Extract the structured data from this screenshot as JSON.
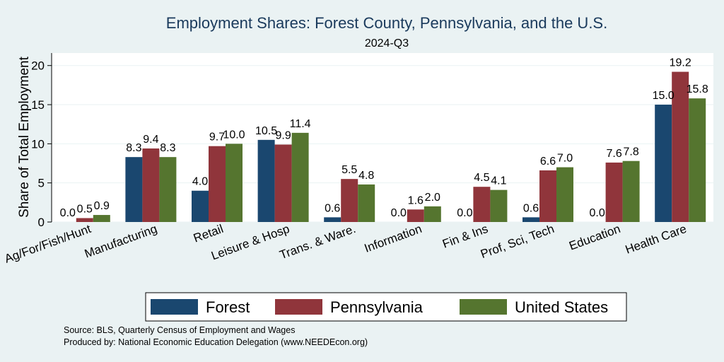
{
  "chart_data": {
    "type": "bar",
    "title": "Employment Shares: Forest County, Pennsylvania, and the U.S.",
    "subtitle": "2024-Q3",
    "xlabel": "",
    "ylabel": "Share of Total Employment",
    "ylim": [
      0,
      21.6
    ],
    "yticks": [
      0,
      5,
      10,
      15,
      20
    ],
    "grid": true,
    "legend_position": "bottom",
    "categories": [
      "Ag/For/Fish/Hunt",
      "Manufacturing",
      "Retail",
      "Leisure & Hosp",
      "Trans. & Ware.",
      "Information",
      "Fin & Ins",
      "Prof, Sci, Tech",
      "Education",
      "Health Care"
    ],
    "series": [
      {
        "name": "Forest",
        "color": "#1a476f",
        "values": [
          0.0,
          8.3,
          4.0,
          10.5,
          0.6,
          0.0,
          0.0,
          0.6,
          0.0,
          15.0
        ],
        "labels": [
          "0.0",
          "8.3",
          "4.0",
          "10.5",
          "0.6",
          "0.0",
          "0.0",
          "0.6",
          "0.0",
          "15.0"
        ]
      },
      {
        "name": "Pennsylvania",
        "color": "#90353b",
        "values": [
          0.5,
          9.4,
          9.7,
          9.9,
          5.5,
          1.6,
          4.5,
          6.6,
          7.6,
          19.2
        ],
        "labels": [
          "0.5",
          "9.4",
          "9.7",
          "9.9",
          "5.5",
          "1.6",
          "4.5",
          "6.6",
          "7.6",
          "19.2"
        ]
      },
      {
        "name": "United States",
        "color": "#55752f",
        "values": [
          0.9,
          8.3,
          10.0,
          11.4,
          4.8,
          2.0,
          4.1,
          7.0,
          7.8,
          15.8
        ],
        "labels": [
          "0.9",
          "8.3",
          "10.0",
          "11.4",
          "4.8",
          "2.0",
          "4.1",
          "7.0",
          "7.8",
          "15.8"
        ]
      }
    ],
    "notes": [
      "Source: BLS, Quarterly Census of Employment and Wages",
      "Produced by: National Economic Education Delegation (www.NEEDEcon.org)"
    ],
    "colors": {
      "background": "#eaf2f3",
      "plot_background": "#ffffff",
      "grid": "#eaf2f3",
      "title": "#1a3a5c"
    }
  }
}
